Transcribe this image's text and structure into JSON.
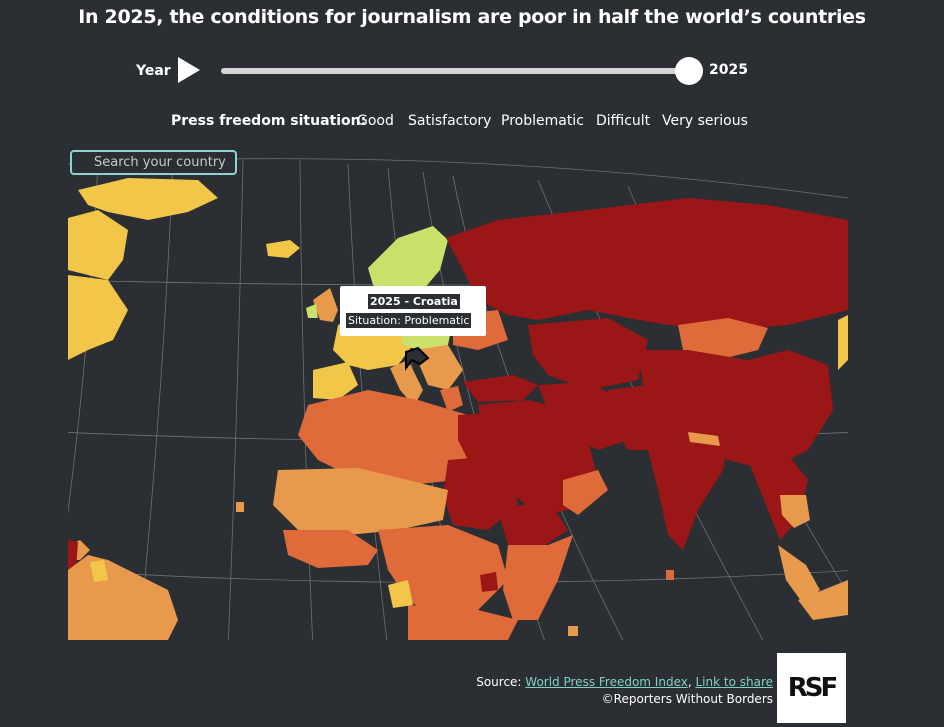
{
  "title": "In 2025, the conditions for journalism are poor in half the world’s countries",
  "controls": {
    "year_label": "Year",
    "year_value": "2025",
    "play_icon": "play-icon",
    "slider_position": 1.0
  },
  "legend": {
    "title": "Press freedom situation:",
    "items": [
      {
        "label": "Good",
        "color": "#c9e06a"
      },
      {
        "label": "Satisfactory",
        "color": "#f2c648"
      },
      {
        "label": "Problematic",
        "color": "#e89a4c"
      },
      {
        "label": "Difficult",
        "color": "#df6a3a"
      },
      {
        "label": "Very serious",
        "color": "#9b1616"
      }
    ]
  },
  "search": {
    "placeholder": "Search your country ..."
  },
  "tooltip": {
    "line1": "2025 - Croatia",
    "line2": "Situation: Problematic"
  },
  "footer": {
    "source_prefix": "Source: ",
    "source_link": "World Press Freedom Index",
    "separator": ", ",
    "share_link": "Link to share",
    "copyright": "©Reporters Without Borders"
  },
  "logo": {
    "text": "RSF"
  },
  "colors": {
    "background": "#2b2e33",
    "good": "#c9e06a",
    "satisfactory": "#f2c648",
    "problematic": "#e89a4c",
    "difficult": "#df6a3a",
    "very_serious": "#9b1616",
    "link": "#7fd1c8",
    "search_border": "#8ed3cd"
  }
}
